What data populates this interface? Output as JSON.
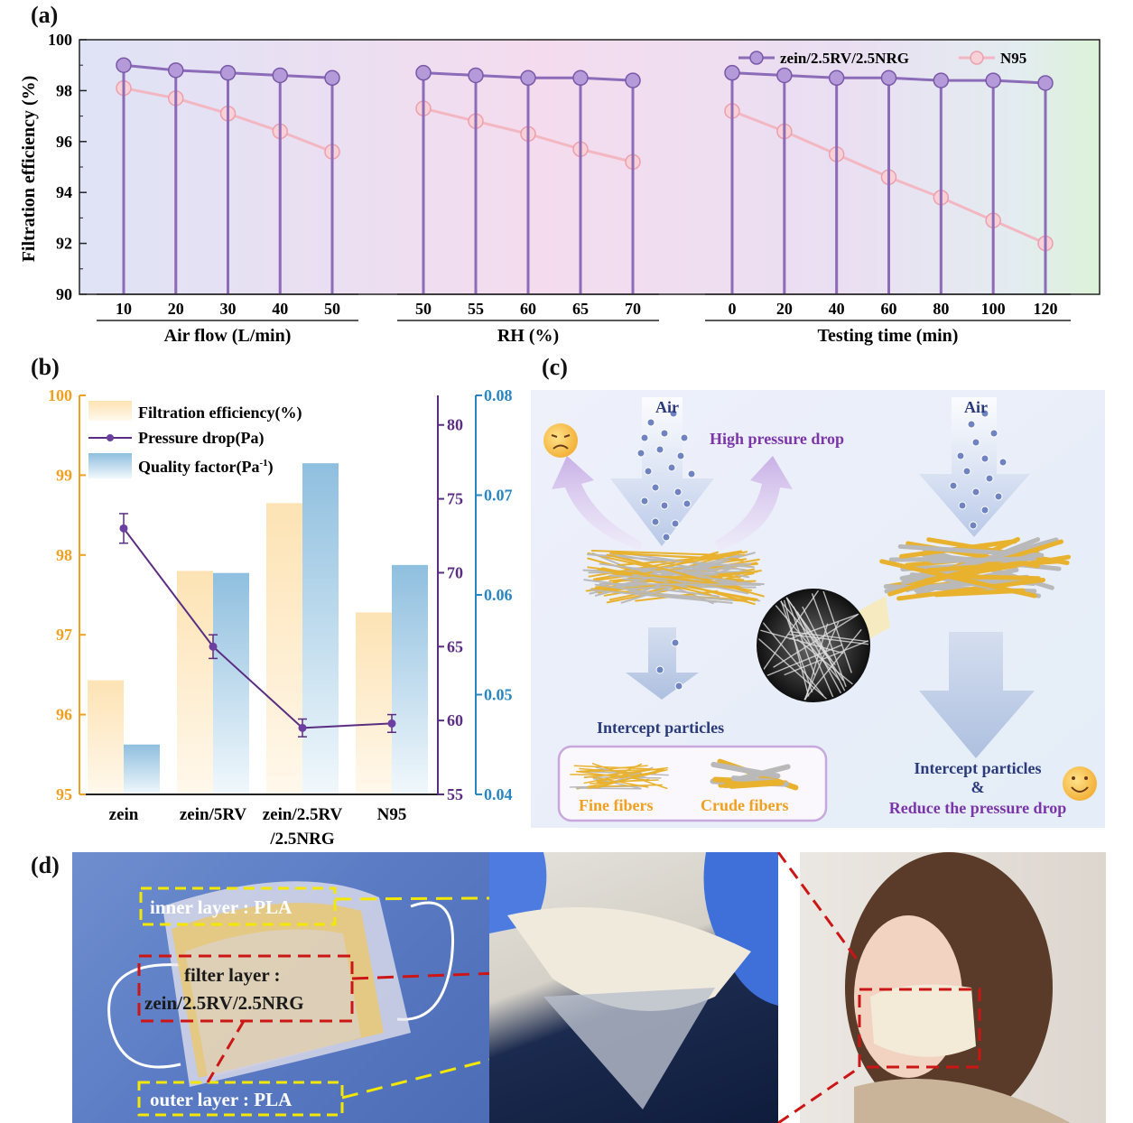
{
  "panel_labels": {
    "a": "(a)",
    "b": "(b)",
    "c": "(c)",
    "d": "(d)"
  },
  "colors": {
    "zein_rv_nrg": "#8c6bb8",
    "n95": "#f3b7c2",
    "orange_axis": "#f0a020",
    "purple_axis": "#5a2d82",
    "blue_axis": "#2a86c0"
  },
  "chart_data": [
    {
      "type": "line",
      "panel": "(a)",
      "ylabel": "Filtration efficiency (%)",
      "ylim": [
        90,
        100
      ],
      "yticks": [
        "90",
        "92",
        "94",
        "96",
        "98",
        "100"
      ],
      "legend": [
        "zein/2.5RV/2.5NRG",
        "N95"
      ],
      "legend_position": "top-right",
      "groups": [
        {
          "xlabel": "Air flow (L/min)",
          "x": [
            "10",
            "20",
            "30",
            "40",
            "50"
          ],
          "series": [
            {
              "name": "zein/2.5RV/2.5NRG",
              "values": [
                99.0,
                98.8,
                98.7,
                98.6,
                98.5
              ]
            },
            {
              "name": "N95",
              "values": [
                98.1,
                97.7,
                97.1,
                96.4,
                95.6
              ]
            }
          ]
        },
        {
          "xlabel": "RH (%)",
          "x": [
            "50",
            "55",
            "60",
            "65",
            "70"
          ],
          "series": [
            {
              "name": "zein/2.5RV/2.5NRG",
              "values": [
                98.7,
                98.6,
                98.5,
                98.5,
                98.4
              ]
            },
            {
              "name": "N95",
              "values": [
                97.3,
                96.8,
                96.3,
                95.7,
                95.2
              ]
            }
          ]
        },
        {
          "xlabel": "Testing time (min)",
          "x": [
            "0",
            "20",
            "40",
            "60",
            "80",
            "100",
            "120"
          ],
          "series": [
            {
              "name": "zein/2.5RV/2.5NRG",
              "values": [
                98.7,
                98.6,
                98.5,
                98.5,
                98.4,
                98.4,
                98.3
              ]
            },
            {
              "name": "N95",
              "values": [
                97.2,
                96.4,
                95.5,
                94.6,
                93.8,
                92.9,
                92.0
              ]
            }
          ]
        }
      ]
    },
    {
      "type": "bar",
      "panel": "(b)",
      "categories": [
        "zein",
        "zein/5RV",
        "zein/2.5RV\n/2.5NRG",
        "N95"
      ],
      "category_lines": [
        [
          "zein"
        ],
        [
          "zein/5RV"
        ],
        [
          "zein/2.5RV",
          "/2.5NRG"
        ],
        [
          "N95"
        ]
      ],
      "axes": {
        "left": {
          "ylim": [
            95,
            100
          ],
          "ticks": [
            "95",
            "96",
            "97",
            "98",
            "99",
            "100"
          ]
        },
        "right1": {
          "ylim": [
            55,
            82
          ],
          "ticks": [
            "55",
            "60",
            "65",
            "70",
            "75",
            "80"
          ]
        },
        "right2": {
          "ylim": [
            0.04,
            0.08
          ],
          "ticks": [
            "0.04",
            "0.05",
            "0.06",
            "0.07",
            "0.08"
          ]
        }
      },
      "series": [
        {
          "name": "Filtration efficiency(%)",
          "values": [
            96.43,
            97.8,
            98.65,
            97.28
          ]
        },
        {
          "name": "Pressure drop(Pa)",
          "values": [
            73.0,
            65.0,
            59.5,
            59.8
          ],
          "errors": [
            1.0,
            0.8,
            0.6,
            0.6
          ]
        },
        {
          "name": "Quality factor(Pa-1)",
          "values": [
            0.045,
            0.0622,
            0.0732,
            0.063
          ]
        }
      ],
      "legend_labels": {
        "efficiency": "Filtration efficiency(%)",
        "pressure": "Pressure drop(Pa)",
        "quality_prefix": "Quality factor(Pa",
        "quality_sup": "-1",
        "quality_suffix": ")"
      }
    }
  ],
  "diagram_c": {
    "air_left": "Air",
    "air_right": "Air",
    "high_pressure": "High pressure drop",
    "intercept_left": "Intercept particles",
    "fine_fibers": "Fine fibers",
    "crude_fibers": "Crude fibers",
    "intercept_right_1": "Intercept particles",
    "ampersand": "&",
    "reduce": "Reduce the pressure drop"
  },
  "panel_d": {
    "inner": "inner layer : PLA",
    "filter_1": "filter layer :",
    "filter_2": "zein/2.5RV/2.5NRG",
    "outer": "outer  layer : PLA"
  }
}
